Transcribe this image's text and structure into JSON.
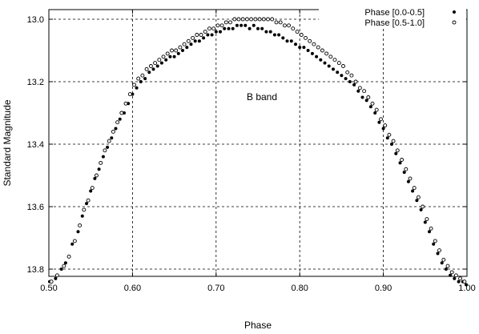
{
  "chart_data": {
    "type": "scatter",
    "xlabel": "Phase",
    "ylabel": "Standard Magnitude",
    "xlim": [
      0.5,
      1.0
    ],
    "ylim": [
      13.0,
      13.85
    ],
    "y_inverted": true,
    "grid": true,
    "x_ticks": [
      "0.50",
      "0.60",
      "0.70",
      "0.80",
      "0.90",
      "1.00"
    ],
    "y_ticks": [
      "13.0",
      "13.2",
      "13.4",
      "13.6",
      "13.8"
    ],
    "annotation": "B band",
    "legend_position": "top-right",
    "series": [
      {
        "name": "Phase [0.0-0.5]",
        "marker": "filled",
        "color": "#000000",
        "points": [
          [
            0.501,
            13.84
          ],
          [
            0.508,
            13.83
          ],
          [
            0.515,
            13.8
          ],
          [
            0.52,
            13.78
          ],
          [
            0.528,
            13.72
          ],
          [
            0.535,
            13.68
          ],
          [
            0.54,
            13.63
          ],
          [
            0.545,
            13.59
          ],
          [
            0.55,
            13.55
          ],
          [
            0.555,
            13.51
          ],
          [
            0.56,
            13.48
          ],
          [
            0.565,
            13.44
          ],
          [
            0.57,
            13.41
          ],
          [
            0.575,
            13.38
          ],
          [
            0.58,
            13.35
          ],
          [
            0.585,
            13.32
          ],
          [
            0.59,
            13.3
          ],
          [
            0.595,
            13.27
          ],
          [
            0.6,
            13.24
          ],
          [
            0.605,
            13.22
          ],
          [
            0.61,
            13.2
          ],
          [
            0.615,
            13.19
          ],
          [
            0.62,
            13.17
          ],
          [
            0.625,
            13.16
          ],
          [
            0.63,
            13.15
          ],
          [
            0.635,
            13.14
          ],
          [
            0.64,
            13.13
          ],
          [
            0.645,
            13.12
          ],
          [
            0.65,
            13.12
          ],
          [
            0.655,
            13.11
          ],
          [
            0.66,
            13.1
          ],
          [
            0.665,
            13.09
          ],
          [
            0.67,
            13.08
          ],
          [
            0.675,
            13.07
          ],
          [
            0.68,
            13.07
          ],
          [
            0.685,
            13.06
          ],
          [
            0.69,
            13.05
          ],
          [
            0.695,
            13.05
          ],
          [
            0.7,
            13.04
          ],
          [
            0.705,
            13.04
          ],
          [
            0.71,
            13.03
          ],
          [
            0.715,
            13.03
          ],
          [
            0.72,
            13.03
          ],
          [
            0.725,
            13.02
          ],
          [
            0.73,
            13.02
          ],
          [
            0.735,
            13.02
          ],
          [
            0.74,
            13.03
          ],
          [
            0.745,
            13.02
          ],
          [
            0.75,
            13.03
          ],
          [
            0.755,
            13.03
          ],
          [
            0.76,
            13.04
          ],
          [
            0.765,
            13.04
          ],
          [
            0.77,
            13.05
          ],
          [
            0.775,
            13.05
          ],
          [
            0.78,
            13.06
          ],
          [
            0.785,
            13.07
          ],
          [
            0.79,
            13.07
          ],
          [
            0.795,
            13.08
          ],
          [
            0.8,
            13.09
          ],
          [
            0.805,
            13.09
          ],
          [
            0.81,
            13.1
          ],
          [
            0.815,
            13.11
          ],
          [
            0.82,
            13.12
          ],
          [
            0.825,
            13.13
          ],
          [
            0.83,
            13.14
          ],
          [
            0.835,
            13.15
          ],
          [
            0.84,
            13.16
          ],
          [
            0.845,
            13.17
          ],
          [
            0.85,
            13.18
          ],
          [
            0.855,
            13.19
          ],
          [
            0.86,
            13.2
          ],
          [
            0.865,
            13.21
          ],
          [
            0.87,
            13.23
          ],
          [
            0.875,
            13.25
          ],
          [
            0.88,
            13.26
          ],
          [
            0.885,
            13.28
          ],
          [
            0.89,
            13.3
          ],
          [
            0.895,
            13.33
          ],
          [
            0.9,
            13.35
          ],
          [
            0.905,
            13.38
          ],
          [
            0.91,
            13.4
          ],
          [
            0.915,
            13.43
          ],
          [
            0.92,
            13.46
          ],
          [
            0.925,
            13.49
          ],
          [
            0.93,
            13.52
          ],
          [
            0.935,
            13.55
          ],
          [
            0.94,
            13.58
          ],
          [
            0.945,
            13.61
          ],
          [
            0.95,
            13.65
          ],
          [
            0.955,
            13.68
          ],
          [
            0.96,
            13.72
          ],
          [
            0.965,
            13.75
          ],
          [
            0.97,
            13.78
          ],
          [
            0.975,
            13.8
          ],
          [
            0.98,
            13.82
          ],
          [
            0.985,
            13.83
          ],
          [
            0.99,
            13.84
          ],
          [
            0.995,
            13.84
          ],
          [
            0.999,
            13.85
          ]
        ]
      },
      {
        "name": "Phase [0.5-1.0]",
        "marker": "open",
        "color": "#000000",
        "points": [
          [
            0.503,
            13.84
          ],
          [
            0.51,
            13.82
          ],
          [
            0.518,
            13.79
          ],
          [
            0.524,
            13.76
          ],
          [
            0.531,
            13.71
          ],
          [
            0.537,
            13.66
          ],
          [
            0.542,
            13.61
          ],
          [
            0.547,
            13.58
          ],
          [
            0.552,
            13.54
          ],
          [
            0.557,
            13.5
          ],
          [
            0.562,
            13.46
          ],
          [
            0.567,
            13.42
          ],
          [
            0.572,
            13.39
          ],
          [
            0.577,
            13.36
          ],
          [
            0.582,
            13.33
          ],
          [
            0.587,
            13.3
          ],
          [
            0.592,
            13.27
          ],
          [
            0.597,
            13.24
          ],
          [
            0.602,
            13.21
          ],
          [
            0.607,
            13.19
          ],
          [
            0.612,
            13.18
          ],
          [
            0.617,
            13.16
          ],
          [
            0.622,
            13.15
          ],
          [
            0.627,
            13.14
          ],
          [
            0.632,
            13.13
          ],
          [
            0.637,
            13.12
          ],
          [
            0.642,
            13.11
          ],
          [
            0.647,
            13.1
          ],
          [
            0.652,
            13.1
          ],
          [
            0.657,
            13.09
          ],
          [
            0.662,
            13.08
          ],
          [
            0.667,
            13.07
          ],
          [
            0.672,
            13.06
          ],
          [
            0.677,
            13.05
          ],
          [
            0.682,
            13.05
          ],
          [
            0.687,
            13.04
          ],
          [
            0.692,
            13.03
          ],
          [
            0.697,
            13.03
          ],
          [
            0.702,
            13.02
          ],
          [
            0.707,
            13.02
          ],
          [
            0.712,
            13.01
          ],
          [
            0.717,
            13.01
          ],
          [
            0.722,
            13.0
          ],
          [
            0.727,
            13.0
          ],
          [
            0.732,
            13.0
          ],
          [
            0.737,
            13.0
          ],
          [
            0.742,
            13.0
          ],
          [
            0.747,
            13.0
          ],
          [
            0.752,
            13.0
          ],
          [
            0.757,
            13.0
          ],
          [
            0.762,
            13.0
          ],
          [
            0.767,
            13.0
          ],
          [
            0.772,
            13.01
          ],
          [
            0.777,
            13.01
          ],
          [
            0.782,
            13.02
          ],
          [
            0.787,
            13.02
          ],
          [
            0.792,
            13.03
          ],
          [
            0.797,
            13.04
          ],
          [
            0.802,
            13.05
          ],
          [
            0.807,
            13.06
          ],
          [
            0.812,
            13.07
          ],
          [
            0.817,
            13.08
          ],
          [
            0.822,
            13.09
          ],
          [
            0.827,
            13.1
          ],
          [
            0.832,
            13.11
          ],
          [
            0.837,
            13.12
          ],
          [
            0.842,
            13.13
          ],
          [
            0.847,
            13.14
          ],
          [
            0.852,
            13.15
          ],
          [
            0.857,
            13.17
          ],
          [
            0.862,
            13.18
          ],
          [
            0.867,
            13.2
          ],
          [
            0.872,
            13.22
          ],
          [
            0.877,
            13.23
          ],
          [
            0.882,
            13.25
          ],
          [
            0.887,
            13.27
          ],
          [
            0.892,
            13.29
          ],
          [
            0.897,
            13.32
          ],
          [
            0.902,
            13.34
          ],
          [
            0.907,
            13.37
          ],
          [
            0.912,
            13.39
          ],
          [
            0.917,
            13.42
          ],
          [
            0.922,
            13.45
          ],
          [
            0.927,
            13.48
          ],
          [
            0.932,
            13.51
          ],
          [
            0.937,
            13.54
          ],
          [
            0.942,
            13.57
          ],
          [
            0.947,
            13.6
          ],
          [
            0.952,
            13.64
          ],
          [
            0.957,
            13.67
          ],
          [
            0.962,
            13.71
          ],
          [
            0.967,
            13.74
          ],
          [
            0.972,
            13.77
          ],
          [
            0.977,
            13.79
          ],
          [
            0.982,
            13.81
          ],
          [
            0.987,
            13.82
          ],
          [
            0.992,
            13.83
          ],
          [
            0.997,
            13.84
          ]
        ]
      }
    ]
  }
}
